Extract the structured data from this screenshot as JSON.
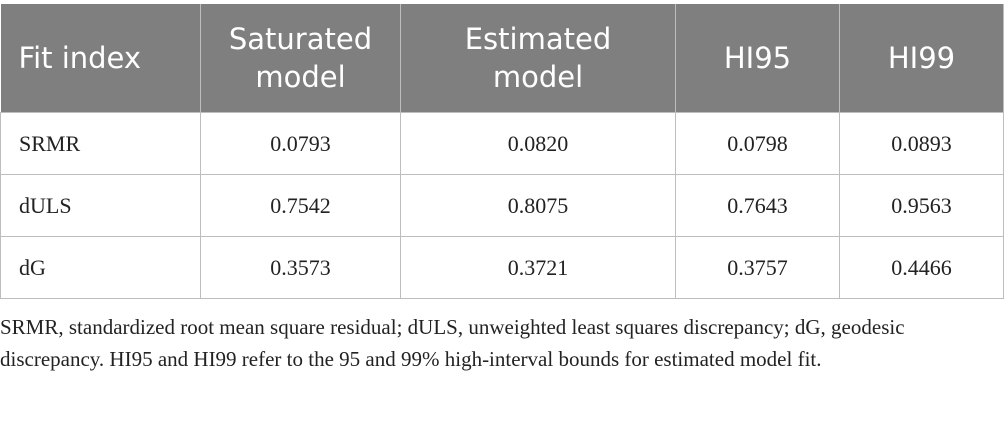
{
  "table": {
    "header": [
      "Fit index",
      "Saturated model",
      "Estimated model",
      "HI95",
      "HI99"
    ],
    "rows": [
      [
        "SRMR",
        "0.0793",
        "0.0820",
        "0.0798",
        "0.0893"
      ],
      [
        "dULS",
        "0.7542",
        "0.8075",
        "0.7643",
        "0.9563"
      ],
      [
        "dG",
        "0.3573",
        "0.3721",
        "0.3757",
        "0.4466"
      ]
    ],
    "footnote": "SRMR, standardized root mean square residual; dULS, unweighted least squares discrepancy; dG, geodesic discrepancy. HI95 and HI99 refer to the 95 and 99% high-interval bounds for estimated model fit."
  }
}
